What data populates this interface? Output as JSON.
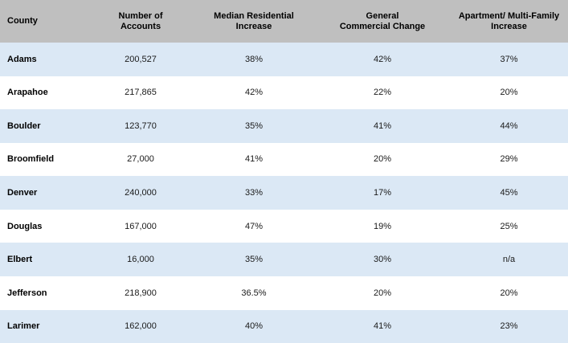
{
  "table": {
    "headers": [
      "County",
      "Number of\nAccounts",
      "Median Residential\nIncrease",
      "General\nCommercial Change",
      "Apartment/ Multi-Family\nIncrease"
    ],
    "rows": [
      [
        "Adams",
        "200,527",
        "38%",
        "42%",
        "37%"
      ],
      [
        "Arapahoe",
        "217,865",
        "42%",
        "22%",
        "20%"
      ],
      [
        "Boulder",
        "123,770",
        "35%",
        "41%",
        "44%"
      ],
      [
        "Broomfield",
        "27,000",
        "41%",
        "20%",
        "29%"
      ],
      [
        "Denver",
        "240,000",
        "33%",
        "17%",
        "45%"
      ],
      [
        "Douglas",
        "167,000",
        "47%",
        "19%",
        "25%"
      ],
      [
        "Elbert",
        "16,000",
        "35%",
        "30%",
        "n/a"
      ],
      [
        "Jefferson",
        "218,900",
        "36.5%",
        "20%",
        "20%"
      ],
      [
        "Larimer",
        "162,000",
        "40%",
        "41%",
        "23%"
      ]
    ]
  },
  "chart_data": {
    "type": "table",
    "columns": [
      "County",
      "Number of Accounts",
      "Median Residential Increase",
      "General Commercial Change",
      "Apartment/ Multi-Family Increase"
    ],
    "rows": [
      {
        "county": "Adams",
        "accounts": 200527,
        "median_residential_increase_pct": 38,
        "general_commercial_change_pct": 42,
        "apartment_multifamily_increase_pct": 37
      },
      {
        "county": "Arapahoe",
        "accounts": 217865,
        "median_residential_increase_pct": 42,
        "general_commercial_change_pct": 22,
        "apartment_multifamily_increase_pct": 20
      },
      {
        "county": "Boulder",
        "accounts": 123770,
        "median_residential_increase_pct": 35,
        "general_commercial_change_pct": 41,
        "apartment_multifamily_increase_pct": 44
      },
      {
        "county": "Broomfield",
        "accounts": 27000,
        "median_residential_increase_pct": 41,
        "general_commercial_change_pct": 20,
        "apartment_multifamily_increase_pct": 29
      },
      {
        "county": "Denver",
        "accounts": 240000,
        "median_residential_increase_pct": 33,
        "general_commercial_change_pct": 17,
        "apartment_multifamily_increase_pct": 45
      },
      {
        "county": "Douglas",
        "accounts": 167000,
        "median_residential_increase_pct": 47,
        "general_commercial_change_pct": 19,
        "apartment_multifamily_increase_pct": 25
      },
      {
        "county": "Elbert",
        "accounts": 16000,
        "median_residential_increase_pct": 35,
        "general_commercial_change_pct": 30,
        "apartment_multifamily_increase_pct": "n/a"
      },
      {
        "county": "Jefferson",
        "accounts": 218900,
        "median_residential_increase_pct": 36.5,
        "general_commercial_change_pct": 20,
        "apartment_multifamily_increase_pct": 20
      },
      {
        "county": "Larimer",
        "accounts": 162000,
        "median_residential_increase_pct": 40,
        "general_commercial_change_pct": 41,
        "apartment_multifamily_increase_pct": 23
      }
    ]
  },
  "colors": {
    "header_bg": "#bfbfbf",
    "row_stripe_bg": "#dbe8f5",
    "row_bg": "#ffffff",
    "text": "#000000"
  }
}
